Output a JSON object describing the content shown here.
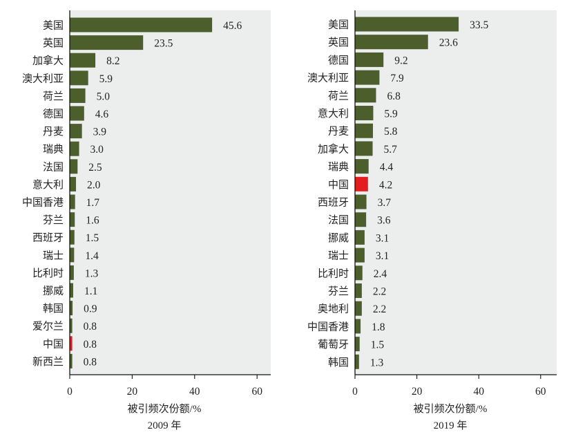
{
  "colors": {
    "bar": "#4b5e2c",
    "highlight": "#e41d1f",
    "plot_bg": "#eceded"
  },
  "chart_data": [
    {
      "type": "bar",
      "orientation": "horizontal",
      "title": "2009 年",
      "xlabel": "被引频次份额/%",
      "xlim": [
        0,
        65
      ],
      "xticks": [
        0,
        20,
        40,
        60
      ],
      "highlight_category": "中国",
      "categories": [
        "美国",
        "英国",
        "加拿大",
        "澳大利亚",
        "荷兰",
        "德国",
        "丹麦",
        "瑞典",
        "法国",
        "意大利",
        "中国香港",
        "芬兰",
        "西班牙",
        "瑞士",
        "比利时",
        "挪威",
        "韩国",
        "爱尔兰",
        "中国",
        "新西兰"
      ],
      "values": [
        45.6,
        23.5,
        8.2,
        5.9,
        5.0,
        4.6,
        3.9,
        3.0,
        2.5,
        2.0,
        1.7,
        1.6,
        1.5,
        1.4,
        1.3,
        1.1,
        0.9,
        0.8,
        0.8,
        0.8
      ],
      "labels": [
        "45.6",
        "23.5",
        "8.2",
        "5.9",
        "5.0",
        "4.6",
        "3.9",
        "3.0",
        "2.5",
        "2.0",
        "1.7",
        "1.6",
        "1.5",
        "1.4",
        "1.3",
        "1.1",
        "0.9",
        "0.8",
        "0.8",
        "0.8"
      ]
    },
    {
      "type": "bar",
      "orientation": "horizontal",
      "title": "2019 年",
      "xlabel": "被引频次份额/%",
      "xlim": [
        0,
        65
      ],
      "xticks": [
        0,
        20,
        40,
        60
      ],
      "highlight_category": "中国",
      "categories": [
        "美国",
        "英国",
        "德国",
        "澳大利亚",
        "荷兰",
        "意大利",
        "丹麦",
        "加拿大",
        "瑞典",
        "中国",
        "西班牙",
        "法国",
        "挪威",
        "瑞士",
        "比利时",
        "芬兰",
        "奥地利",
        "中国香港",
        "葡萄牙",
        "韩国"
      ],
      "values": [
        33.5,
        23.6,
        9.2,
        7.9,
        6.8,
        5.9,
        5.8,
        5.7,
        4.4,
        4.2,
        3.7,
        3.6,
        3.1,
        3.1,
        2.4,
        2.2,
        2.2,
        1.8,
        1.5,
        1.3
      ],
      "labels": [
        "33.5",
        "23.6",
        "9.2",
        "7.9",
        "6.8",
        "5.9",
        "5.8",
        "5.7",
        "4.4",
        "4.2",
        "3.7",
        "3.6",
        "3.1",
        "3.1",
        "2.4",
        "2.2",
        "2.2",
        "1.8",
        "1.5",
        "1.3"
      ]
    }
  ]
}
